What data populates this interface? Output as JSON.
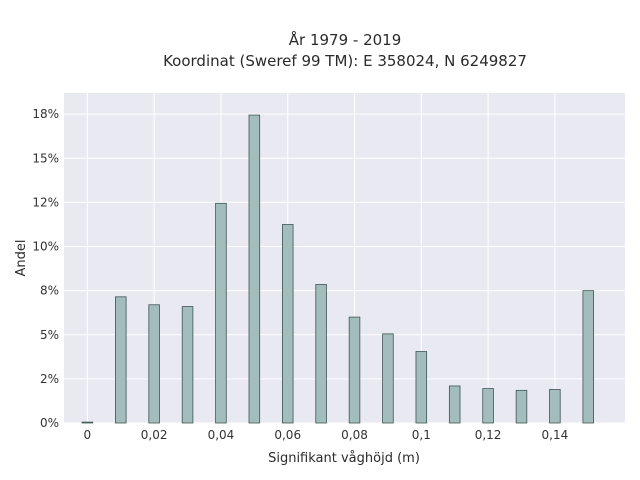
{
  "chart_data": {
    "type": "bar",
    "title_line1": "År 1979 - 2019",
    "title_line2": "Koordinat (Sweref 99 TM): E 358024, N 6249827",
    "xlabel": "Signifikant våghöjd (m)",
    "ylabel": "Andel",
    "xlim": [
      -0.007,
      0.161
    ],
    "ylim": [
      0,
      0.187
    ],
    "x_ticks": [
      {
        "value": 0,
        "label": "0"
      },
      {
        "value": 0.02,
        "label": "0,02"
      },
      {
        "value": 0.04,
        "label": "0,04"
      },
      {
        "value": 0.06,
        "label": "0,06"
      },
      {
        "value": 0.08,
        "label": "0,08"
      },
      {
        "value": 0.1,
        "label": "0,1"
      },
      {
        "value": 0.12,
        "label": "0,12"
      },
      {
        "value": 0.14,
        "label": "0,14"
      }
    ],
    "y_ticks": [
      {
        "value": 0,
        "label": "0%"
      },
      {
        "value": 0.025,
        "label": "2%"
      },
      {
        "value": 0.05,
        "label": "5%"
      },
      {
        "value": 0.075,
        "label": "8%"
      },
      {
        "value": 0.1,
        "label": "10%"
      },
      {
        "value": 0.125,
        "label": "12%"
      },
      {
        "value": 0.15,
        "label": "15%"
      },
      {
        "value": 0.175,
        "label": "18%"
      }
    ],
    "grid": true,
    "bar_width": 0.0032,
    "x": [
      0,
      0.01,
      0.02,
      0.03,
      0.04,
      0.05,
      0.06,
      0.07,
      0.08,
      0.09,
      0.1,
      0.11,
      0.12,
      0.13,
      0.14,
      0.15
    ],
    "values": [
      0.0005,
      0.0715,
      0.067,
      0.066,
      0.1245,
      0.1745,
      0.1125,
      0.0785,
      0.06,
      0.0505,
      0.0405,
      0.021,
      0.0195,
      0.0185,
      0.019,
      0.075
    ],
    "colors": {
      "bar_fill": "#a3bcbc",
      "bar_edge": "#3f5752",
      "plot_bg": "#e9e9f1",
      "grid": "#ffffff"
    }
  }
}
